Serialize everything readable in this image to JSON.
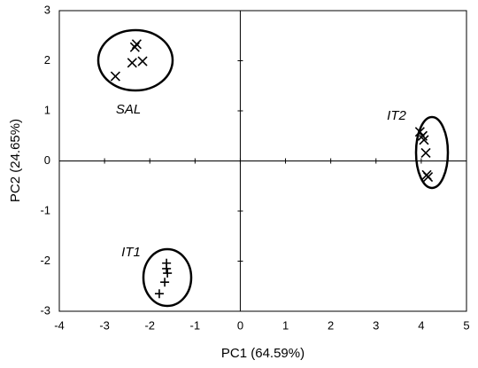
{
  "chart_data": {
    "type": "scatter",
    "x_label": "PC1 (64.59%)",
    "y_label": "PC2 (24.65%)",
    "xlim": [
      -4,
      5
    ],
    "ylim": [
      -3,
      3
    ],
    "xticks": [
      -4,
      -3,
      -2,
      -1,
      0,
      1,
      2,
      3,
      4,
      5
    ],
    "yticks": [
      -3,
      -2,
      -1,
      0,
      1,
      2,
      3
    ],
    "series": [
      {
        "name": "SAL",
        "marker": "x",
        "color": "#000000",
        "x": [
          -2.76,
          -2.39,
          -2.33,
          -2.29,
          -2.16
        ],
        "values": [
          1.69,
          1.96,
          2.27,
          2.33,
          1.99
        ]
      },
      {
        "name": "IT2",
        "marker": "x",
        "color": "#000000",
        "x": [
          3.97,
          4.03,
          4.06,
          4.1,
          4.12,
          4.15
        ],
        "values": [
          0.58,
          0.5,
          0.42,
          0.16,
          -0.28,
          -0.32
        ]
      },
      {
        "name": "IT1",
        "marker": "+",
        "color": "#000000",
        "x": [
          -1.63,
          -1.63,
          -1.61,
          -1.67,
          -1.79
        ],
        "values": [
          -2.04,
          -2.15,
          -2.24,
          -2.42,
          -2.65
        ]
      }
    ]
  }
}
